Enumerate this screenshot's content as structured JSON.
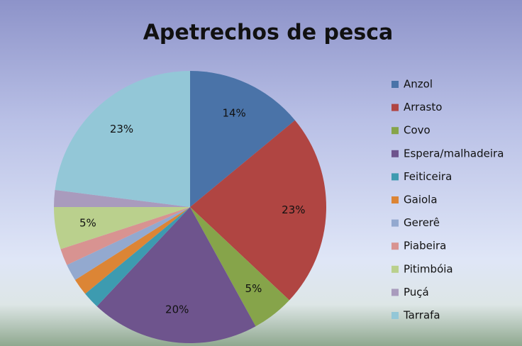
{
  "chart_data": {
    "type": "pie",
    "title": "Apetrechos de pesca",
    "categories": [
      "Anzol",
      "Arrasto",
      "Covo",
      "Espera/malhadeira",
      "Feiticeira",
      "Gaiola",
      "Gererê",
      "Piabeira",
      "Pitimbóia",
      "Puçá",
      "Tarrafa"
    ],
    "values": [
      14,
      23,
      5,
      20,
      2,
      2,
      2,
      2,
      5,
      2,
      23
    ],
    "value_labels": [
      "14%",
      "23%",
      "5%",
      "20%",
      null,
      null,
      null,
      null,
      "5%",
      null,
      "23%"
    ],
    "colors": [
      "#4a73a8",
      "#b04542",
      "#86a44a",
      "#6e548d",
      "#3d9bb0",
      "#dc8535",
      "#93a9cf",
      "#d89391",
      "#bad08d",
      "#a99bbd",
      "#93c7d7"
    ],
    "legend": "right"
  }
}
